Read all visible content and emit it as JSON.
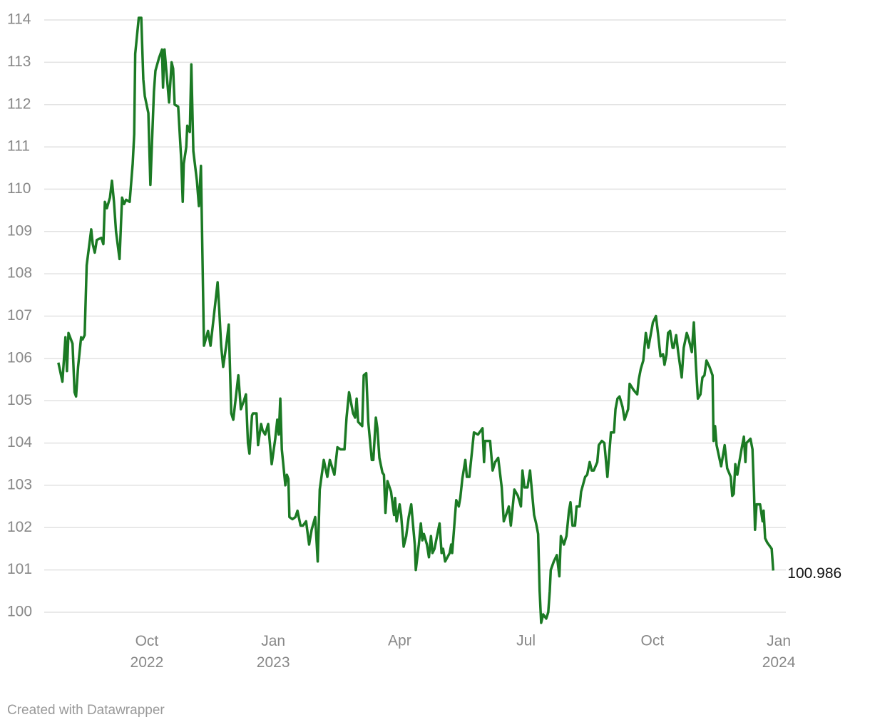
{
  "chart_data": {
    "type": "line",
    "credit": "Created with Datawrapper",
    "x": [
      2022.575,
      2022.583,
      2022.589,
      2022.592,
      2022.595,
      2022.603,
      2022.607,
      2022.61,
      2022.614,
      2022.62,
      2022.623,
      2022.627,
      2022.631,
      2022.64,
      2022.643,
      2022.647,
      2022.651,
      2022.66,
      2022.664,
      2022.667,
      2022.671,
      2022.677,
      2022.681,
      2022.685,
      2022.689,
      2022.696,
      2022.701,
      2022.705,
      2022.709,
      2022.716,
      2022.722,
      2022.725,
      2022.727,
      2022.734,
      2022.739,
      2022.743,
      2022.746,
      2022.753,
      2022.757,
      2022.764,
      2022.767,
      2022.774,
      2022.78,
      2022.782,
      2022.785,
      2022.79,
      2022.794,
      2022.799,
      2022.802,
      2022.805,
      2022.812,
      2022.818,
      2022.821,
      2022.823,
      2022.828,
      2022.83,
      2022.835,
      2022.838,
      2022.842,
      2022.849,
      2022.853,
      2022.857,
      2022.863,
      2022.871,
      2022.876,
      2022.89,
      2022.893,
      2022.897,
      2022.901,
      2022.907,
      2022.912,
      2022.917,
      2022.921,
      2022.931,
      2022.936,
      2022.942,
      2022.946,
      2022.95,
      2022.953,
      2022.958,
      2022.96,
      2022.967,
      2022.97,
      2022.976,
      2022.979,
      2022.984,
      2022.99,
      2022.997,
      2023.004,
      2023.008,
      2023.011,
      2023.014,
      2023.017,
      2023.024,
      2023.027,
      2023.03,
      2023.032,
      2023.038,
      2023.044,
      2023.048,
      2023.054,
      2023.059,
      2023.065,
      2023.071,
      2023.076,
      2023.083,
      2023.088,
      2023.092,
      2023.1,
      2023.107,
      2023.112,
      2023.121,
      2023.127,
      2023.133,
      2023.141,
      2023.145,
      2023.15,
      2023.158,
      2023.162,
      2023.165,
      2023.168,
      2023.176,
      2023.179,
      2023.184,
      2023.188,
      2023.195,
      2023.198,
      2023.203,
      2023.206,
      2023.21,
      2023.216,
      2023.219,
      2023.222,
      2023.226,
      2023.233,
      2023.239,
      2023.241,
      2023.244,
      2023.25,
      2023.253,
      2023.258,
      2023.263,
      2023.268,
      2023.273,
      2023.28,
      2023.282,
      2023.288,
      2023.292,
      2023.295,
      2023.298,
      2023.304,
      2023.308,
      2023.312,
      2023.315,
      2023.319,
      2023.329,
      2023.333,
      2023.336,
      2023.34,
      2023.349,
      2023.352,
      2023.354,
      2023.362,
      2023.367,
      2023.37,
      2023.374,
      2023.38,
      2023.383,
      2023.388,
      2023.397,
      2023.405,
      2023.414,
      2023.417,
      2023.419,
      2023.429,
      2023.434,
      2023.439,
      2023.445,
      2023.452,
      2023.456,
      2023.462,
      2023.466,
      2023.47,
      2023.473,
      2023.477,
      2023.484,
      2023.49,
      2023.493,
      2023.497,
      2023.503,
      2023.508,
      2023.516,
      2023.52,
      2023.524,
      2023.527,
      2023.53,
      2023.534,
      2023.54,
      2023.544,
      2023.547,
      2023.549,
      2023.555,
      2023.561,
      2023.566,
      2023.569,
      2023.575,
      2023.58,
      2023.585,
      2023.588,
      2023.592,
      2023.597,
      2023.6,
      2023.606,
      2023.609,
      2023.617,
      2023.621,
      2023.626,
      2023.63,
      2023.634,
      2023.641,
      2023.644,
      2023.65,
      2023.655,
      2023.661,
      2023.668,
      2023.674,
      2023.677,
      2023.681,
      2023.685,
      2023.691,
      2023.695,
      2023.702,
      2023.705,
      2023.713,
      2023.72,
      2023.723,
      2023.727,
      2023.732,
      2023.737,
      2023.742,
      2023.751,
      2023.757,
      2023.761,
      2023.766,
      2023.771,
      2023.774,
      2023.778,
      2023.781,
      2023.785,
      2023.79,
      2023.792,
      2023.797,
      2023.801,
      2023.808,
      2023.812,
      2023.818,
      2023.822,
      2023.828,
      2023.832,
      2023.836,
      2023.84,
      2023.845,
      2023.849,
      2023.853,
      2023.857,
      2023.863,
      2023.869,
      2023.871,
      2023.874,
      2023.877,
      2023.886,
      2023.893,
      2023.898,
      2023.905,
      2023.908,
      2023.911,
      2023.914,
      2023.918,
      2023.922,
      2023.927,
      2023.931,
      2023.934,
      2023.936,
      2023.944,
      2023.948,
      2023.951,
      2023.953,
      2023.956,
      2023.963,
      2023.968,
      2023.97,
      2023.973,
      2023.977,
      2023.983,
      2023.986,
      2023.989
    ],
    "series": [
      {
        "color": "#1b7a24",
        "values": [
          105.9,
          105.45,
          106.5,
          105.7,
          106.6,
          106.35,
          105.2,
          105.1,
          105.8,
          106.5,
          106.45,
          106.55,
          108.2,
          109.05,
          108.7,
          108.5,
          108.8,
          108.85,
          108.7,
          109.7,
          109.55,
          109.8,
          110.2,
          109.7,
          109.0,
          108.35,
          109.8,
          109.65,
          109.75,
          109.7,
          110.6,
          111.3,
          113.2,
          114.05,
          114.05,
          112.6,
          112.2,
          111.8,
          110.1,
          112.3,
          112.8,
          113.1,
          113.3,
          112.4,
          113.3,
          112.6,
          112.05,
          113.0,
          112.85,
          112.0,
          111.95,
          110.7,
          109.7,
          110.6,
          111.0,
          111.5,
          111.35,
          112.95,
          110.9,
          110.2,
          109.6,
          110.55,
          106.3,
          106.65,
          106.3,
          107.8,
          107.2,
          106.3,
          105.8,
          106.3,
          106.8,
          104.7,
          104.55,
          105.6,
          104.8,
          105.0,
          105.15,
          104.0,
          103.75,
          104.65,
          104.7,
          104.7,
          103.95,
          104.45,
          104.3,
          104.2,
          104.45,
          103.5,
          104.1,
          104.55,
          104.2,
          105.05,
          103.85,
          103.0,
          103.25,
          103.15,
          102.25,
          102.2,
          102.25,
          102.4,
          102.05,
          102.05,
          102.15,
          101.6,
          101.95,
          102.25,
          101.2,
          102.9,
          103.6,
          103.2,
          103.6,
          103.25,
          103.9,
          103.85,
          103.85,
          104.6,
          105.2,
          104.7,
          104.6,
          105.05,
          104.5,
          104.4,
          105.6,
          105.65,
          104.5,
          103.6,
          103.6,
          104.6,
          104.35,
          103.65,
          103.3,
          103.25,
          102.35,
          103.1,
          102.85,
          102.3,
          102.7,
          102.15,
          102.55,
          102.3,
          101.55,
          101.8,
          102.25,
          102.55,
          101.6,
          101.0,
          101.6,
          102.1,
          101.7,
          101.85,
          101.6,
          101.3,
          101.8,
          101.4,
          101.5,
          102.1,
          101.4,
          101.5,
          101.2,
          101.4,
          101.6,
          101.4,
          102.65,
          102.5,
          102.7,
          103.15,
          103.6,
          103.2,
          103.2,
          104.25,
          104.2,
          104.35,
          103.55,
          104.05,
          104.05,
          103.35,
          103.55,
          103.65,
          102.95,
          102.15,
          102.35,
          102.5,
          102.05,
          102.4,
          102.9,
          102.75,
          102.5,
          103.35,
          102.95,
          102.95,
          103.35,
          102.3,
          102.1,
          101.85,
          100.5,
          99.75,
          99.95,
          99.85,
          100.0,
          100.5,
          101.0,
          101.2,
          101.35,
          100.85,
          101.8,
          101.6,
          101.8,
          102.4,
          102.6,
          102.05,
          102.05,
          102.5,
          102.5,
          102.85,
          103.2,
          103.25,
          103.55,
          103.35,
          103.35,
          103.55,
          103.95,
          104.05,
          104.0,
          103.2,
          104.25,
          104.25,
          104.8,
          105.05,
          105.1,
          104.85,
          104.55,
          104.8,
          105.4,
          105.25,
          105.15,
          105.5,
          105.75,
          105.95,
          106.6,
          106.25,
          106.85,
          107.0,
          106.6,
          106.05,
          106.1,
          105.85,
          106.1,
          106.6,
          106.65,
          106.25,
          106.25,
          106.55,
          106.15,
          105.55,
          106.25,
          106.6,
          106.45,
          106.15,
          106.85,
          105.85,
          105.05,
          105.15,
          105.55,
          105.6,
          105.95,
          105.8,
          105.6,
          104.05,
          104.4,
          103.95,
          103.45,
          103.95,
          103.4,
          103.2,
          102.75,
          102.8,
          103.5,
          103.25,
          103.55,
          103.9,
          104.15,
          103.55,
          104.0,
          104.1,
          103.85,
          102.85,
          101.95,
          102.55,
          102.55,
          102.15,
          102.4,
          101.75,
          101.65,
          101.55,
          101.5,
          100.986
        ]
      }
    ],
    "xlim": [
      2022.547,
      2024.014
    ],
    "xticks": [
      {
        "value": 2022.75,
        "label": "Oct 2022"
      },
      {
        "value": 2023,
        "label": "Jan 2023"
      },
      {
        "value": 2023.25,
        "label": "Apr"
      },
      {
        "value": 2023.5,
        "label": "Jul"
      },
      {
        "value": 2023.75,
        "label": "Oct"
      },
      {
        "value": 2024,
        "label": "Jan 2024"
      }
    ],
    "ylim": [
      100,
      114
    ],
    "yticks": [
      100,
      101,
      102,
      103,
      104,
      105,
      106,
      107,
      108,
      109,
      110,
      111,
      112,
      113,
      114
    ],
    "grid": true
  }
}
